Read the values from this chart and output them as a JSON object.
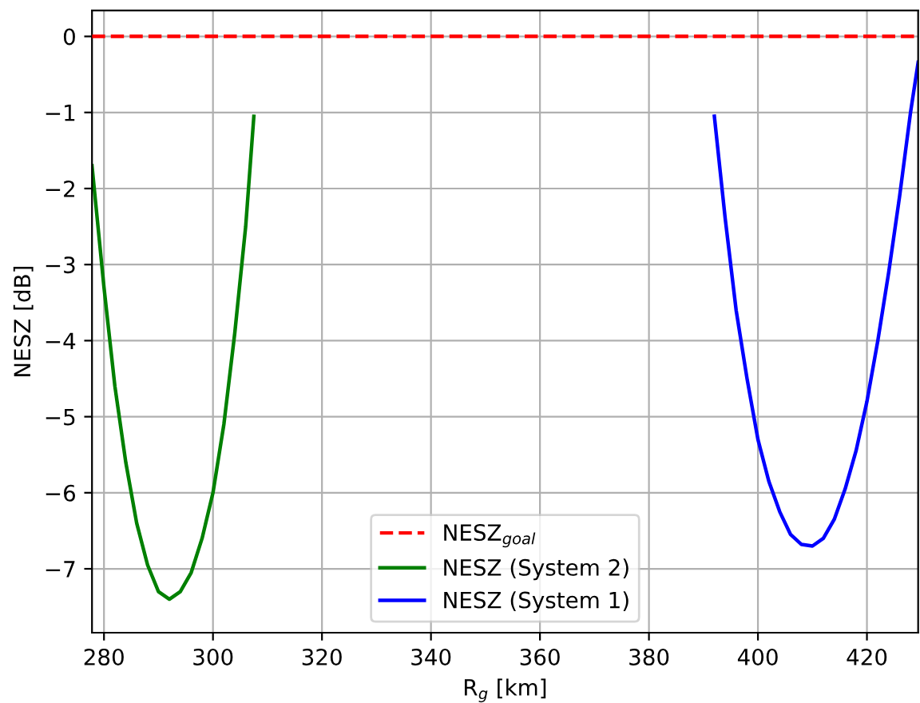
{
  "chart_data": {
    "type": "line",
    "xlabel": "R$_{g}$ [km]",
    "ylabel": "NESZ [dB]",
    "xlim": [
      277.8,
      429.4
    ],
    "ylim": [
      -7.84,
      0.34
    ],
    "xticks": [
      280,
      300,
      320,
      340,
      360,
      380,
      400,
      420
    ],
    "yticks": [
      {
        "value": 0,
        "label": "0"
      },
      {
        "value": -1,
        "label": "−1"
      },
      {
        "value": -2,
        "label": "−2"
      },
      {
        "value": -3,
        "label": "−3"
      },
      {
        "value": -4,
        "label": "−4"
      },
      {
        "value": -5,
        "label": "−5"
      },
      {
        "value": -6,
        "label": "−6"
      },
      {
        "value": -7,
        "label": "−7"
      }
    ],
    "grid": true,
    "legend": "bottom",
    "line_style": "solid",
    "ref_lines": [
      {
        "axis": "y",
        "value": 0,
        "label": "NESZ$_{goal}$",
        "color": "#ff0000",
        "line_style": "dashed"
      }
    ],
    "series": [
      {
        "name": "NESZ (System 2)",
        "color": "#008000",
        "x": [
          277.8,
          280,
          282,
          284,
          286,
          288,
          290,
          292,
          294,
          296,
          298,
          300,
          302,
          304,
          306,
          307.5
        ],
        "values": [
          -1.7,
          -3.3,
          -4.6,
          -5.6,
          -6.4,
          -6.95,
          -7.3,
          -7.4,
          -7.3,
          -7.05,
          -6.6,
          -6.0,
          -5.1,
          -3.9,
          -2.5,
          -1.05
        ]
      },
      {
        "name": "NESZ (System 1)",
        "color": "#0000ff",
        "x": [
          392,
          394,
          396,
          398,
          400,
          402,
          404,
          406,
          408,
          410,
          412,
          414,
          416,
          418,
          420,
          422,
          424,
          426,
          428,
          429.4
        ],
        "values": [
          -1.05,
          -2.4,
          -3.6,
          -4.5,
          -5.3,
          -5.85,
          -6.25,
          -6.55,
          -6.68,
          -6.7,
          -6.6,
          -6.35,
          -5.95,
          -5.45,
          -4.8,
          -4.0,
          -3.1,
          -2.1,
          -1.0,
          -0.34
        ]
      }
    ]
  }
}
